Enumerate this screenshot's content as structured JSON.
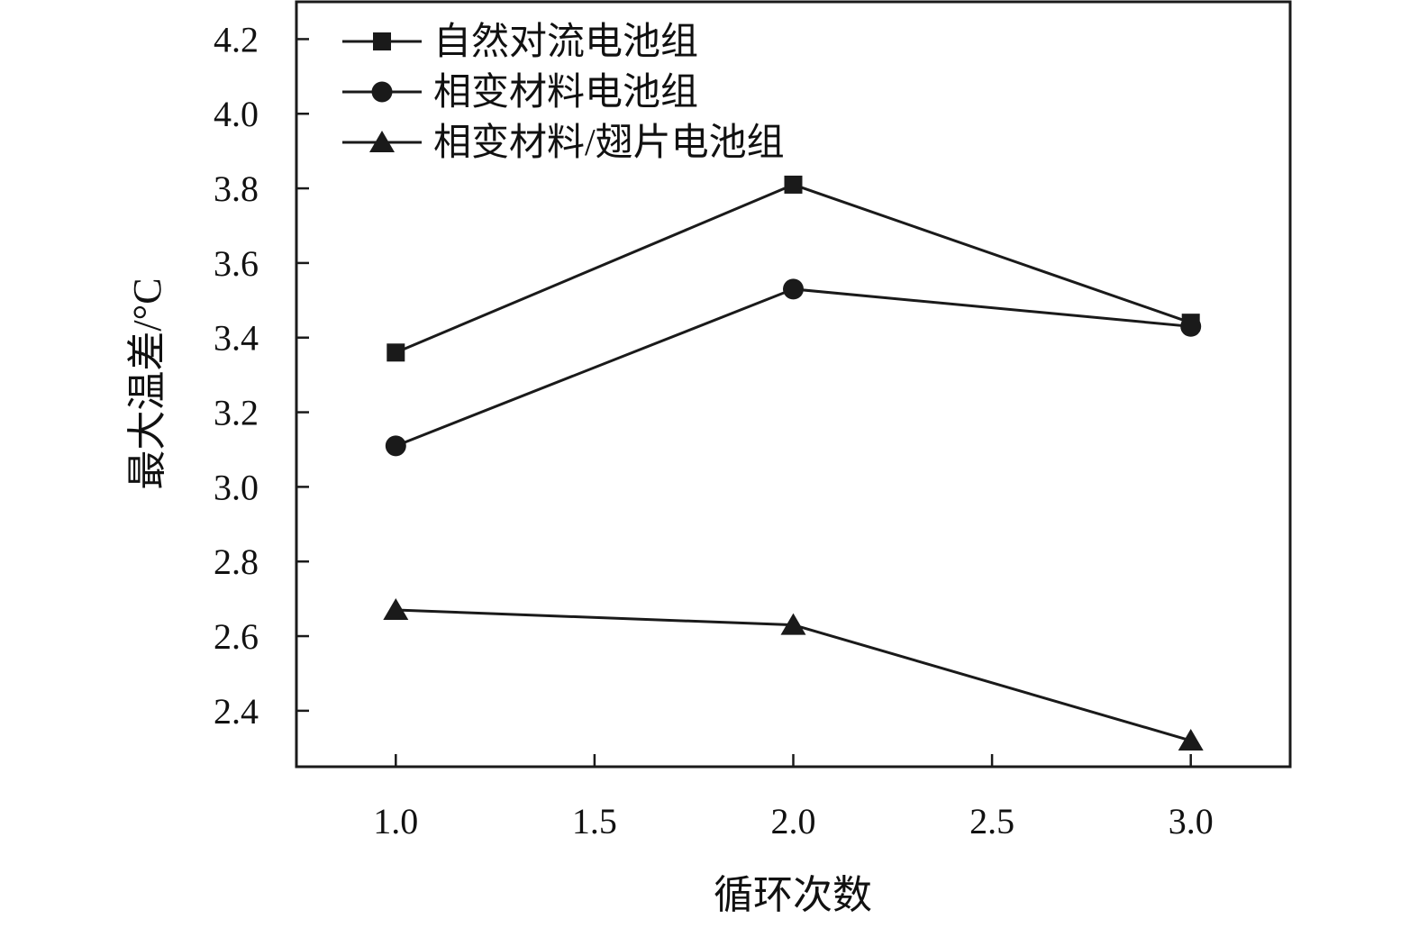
{
  "chart_data": {
    "type": "line",
    "xlabel": "循环次数",
    "ylabel": "最大温差/°C",
    "xlim": [
      0.75,
      3.25
    ],
    "ylim": [
      2.25,
      4.3
    ],
    "x_ticks": [
      "1.0",
      "1.5",
      "2.0",
      "2.5",
      "3.0"
    ],
    "y_ticks": [
      "2.4",
      "2.6",
      "2.8",
      "3.0",
      "3.2",
      "3.4",
      "3.6",
      "3.8",
      "4.0",
      "4.2"
    ],
    "grid": false,
    "legend_position": "top-left",
    "series": [
      {
        "name": "自然对流电池组",
        "marker": "square",
        "color": "#1a1a1a",
        "x": [
          1.0,
          2.0,
          3.0
        ],
        "y": [
          3.36,
          3.81,
          3.44
        ]
      },
      {
        "name": "相变材料电池组",
        "marker": "circle",
        "color": "#1a1a1a",
        "x": [
          1.0,
          2.0,
          3.0
        ],
        "y": [
          3.11,
          3.53,
          3.43
        ]
      },
      {
        "name": "相变材料/翅片电池组",
        "marker": "triangle",
        "color": "#1a1a1a",
        "x": [
          1.0,
          2.0,
          3.0
        ],
        "y": [
          2.67,
          2.63,
          2.32
        ]
      }
    ]
  }
}
